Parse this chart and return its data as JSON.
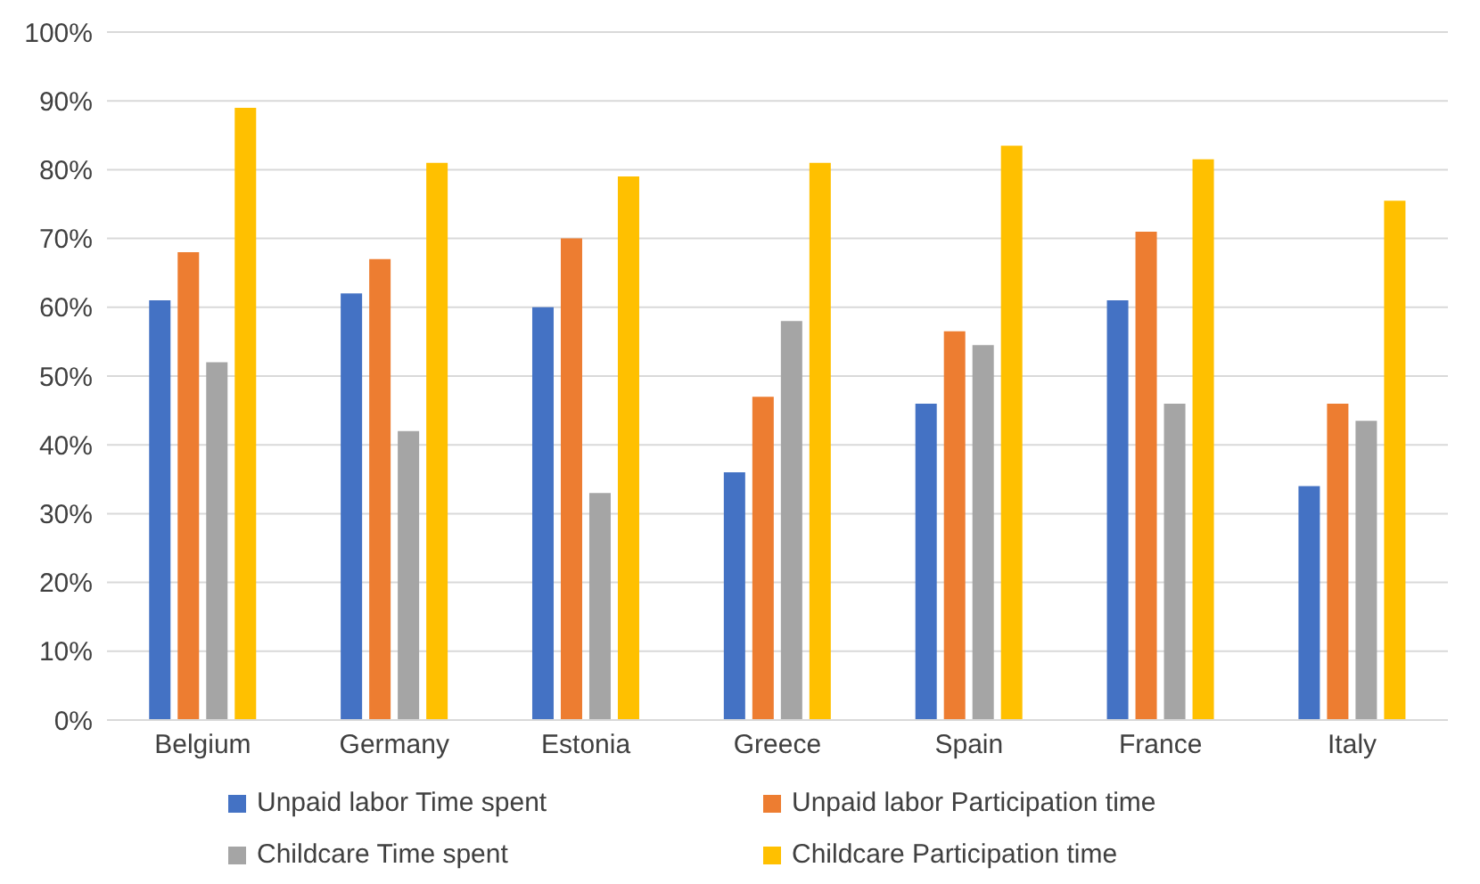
{
  "chart_data": {
    "type": "bar",
    "categories": [
      "Belgium",
      "Germany",
      "Estonia",
      "Greece",
      "Spain",
      "France",
      "Italy"
    ],
    "series": [
      {
        "name": "Unpaid labor Time spent",
        "color": "#4472c4",
        "values": [
          61,
          62,
          60,
          36,
          46,
          61,
          34
        ]
      },
      {
        "name": "Unpaid labor Participation time",
        "color": "#ed7d31",
        "values": [
          68,
          67,
          70,
          47,
          56.5,
          71,
          46
        ]
      },
      {
        "name": "Childcare Time spent",
        "color": "#a5a5a5",
        "values": [
          52,
          42,
          33,
          58,
          54.5,
          46,
          43.5
        ]
      },
      {
        "name": "Childcare Participation time",
        "color": "#ffc000",
        "values": [
          89,
          81,
          79,
          81,
          83.5,
          81.5,
          75.5
        ]
      }
    ],
    "ylim": [
      0,
      100
    ],
    "yticks": [
      {
        "value": 0,
        "label": "0%"
      },
      {
        "value": 10,
        "label": "10%"
      },
      {
        "value": 20,
        "label": "20%"
      },
      {
        "value": 30,
        "label": "30%"
      },
      {
        "value": 40,
        "label": "40%"
      },
      {
        "value": 50,
        "label": "50%"
      },
      {
        "value": 60,
        "label": "60%"
      },
      {
        "value": 70,
        "label": "70%"
      },
      {
        "value": 80,
        "label": "80%"
      },
      {
        "value": 90,
        "label": "90%"
      },
      {
        "value": 100,
        "label": "100%"
      }
    ],
    "grid": "y",
    "legend": "bottom"
  }
}
